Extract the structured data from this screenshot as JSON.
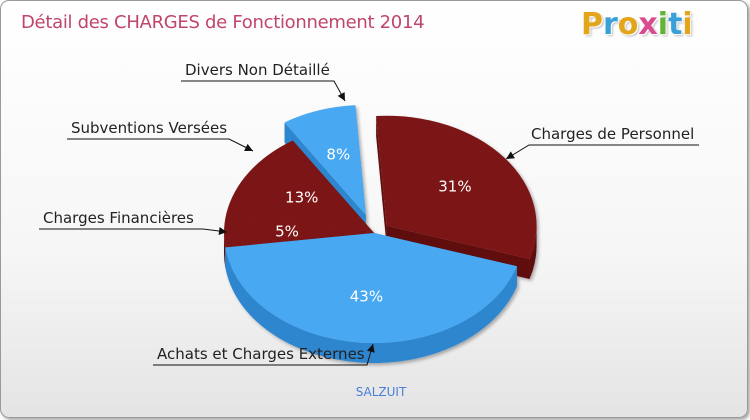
{
  "header": {
    "title": "Détail des CHARGES de Fonctionnement 2014",
    "logo_letters": [
      "P",
      "r",
      "o",
      "x",
      "i",
      "t",
      "i"
    ],
    "logo_colors": [
      "#e2a51b",
      "#3aa0d8",
      "#e2a51b",
      "#d94b8f",
      "#62b234",
      "#3aa0d8",
      "#e2a51b"
    ]
  },
  "footer": {
    "city": "SALZUIT"
  },
  "chart_data": {
    "type": "pie",
    "title": "Détail des CHARGES de Fonctionnement 2014",
    "slices": [
      {
        "label": "Charges de Personnel",
        "value": 31,
        "pct_label": "31%",
        "color": "#7b1416",
        "side": "#5e0d0f",
        "exploded": true
      },
      {
        "label": "Achats et Charges Externes",
        "value": 43,
        "pct_label": "43%",
        "color": "#4aa8f2",
        "side": "#2f86cf",
        "exploded": false
      },
      {
        "label": "Charges Financières",
        "value": 5,
        "pct_label": "5%",
        "color": "#7b1416",
        "side": "#5e0d0f",
        "exploded": false
      },
      {
        "label": "Subventions Versées",
        "value": 13,
        "pct_label": "13%",
        "color": "#7b1416",
        "side": "#5e0d0f",
        "exploded": false
      },
      {
        "label": "Divers Non Détaillé",
        "value": 8,
        "pct_label": "8%",
        "color": "#4aa8f2",
        "side": "#2f86cf",
        "exploded": true
      }
    ],
    "legend": "none"
  }
}
